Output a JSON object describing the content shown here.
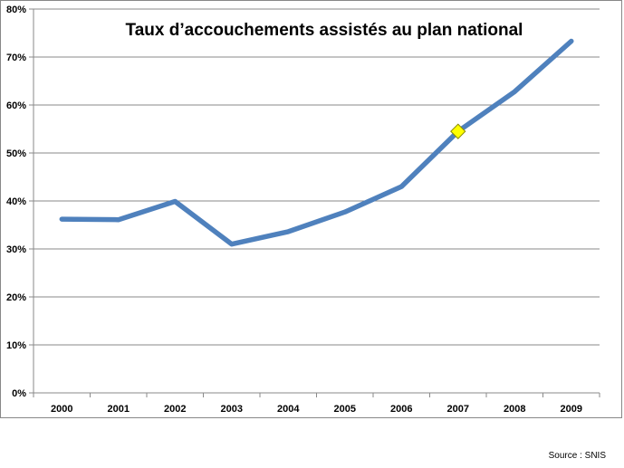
{
  "chart_data": {
    "type": "line",
    "title": "Taux d’accouchements assistés au plan national",
    "categories": [
      "2000",
      "2001",
      "2002",
      "2003",
      "2004",
      "2005",
      "2006",
      "2007",
      "2008",
      "2009"
    ],
    "series": [
      {
        "values": [
          0.362,
          0.361,
          0.399,
          0.31,
          0.336,
          0.377,
          0.43,
          0.545,
          0.628,
          0.733
        ],
        "color": "#4F81BD"
      }
    ],
    "highlight": {
      "category": "2007",
      "value": 0.545,
      "marker": "diamond",
      "color": "#FFFF00"
    },
    "ylim": [
      0,
      0.8
    ],
    "yticks": [
      "0%",
      "10%",
      "20%",
      "30%",
      "40%",
      "50%",
      "60%",
      "70%",
      "80%"
    ],
    "grid": true,
    "legend": "none"
  },
  "source_text": "Source : SNIS"
}
